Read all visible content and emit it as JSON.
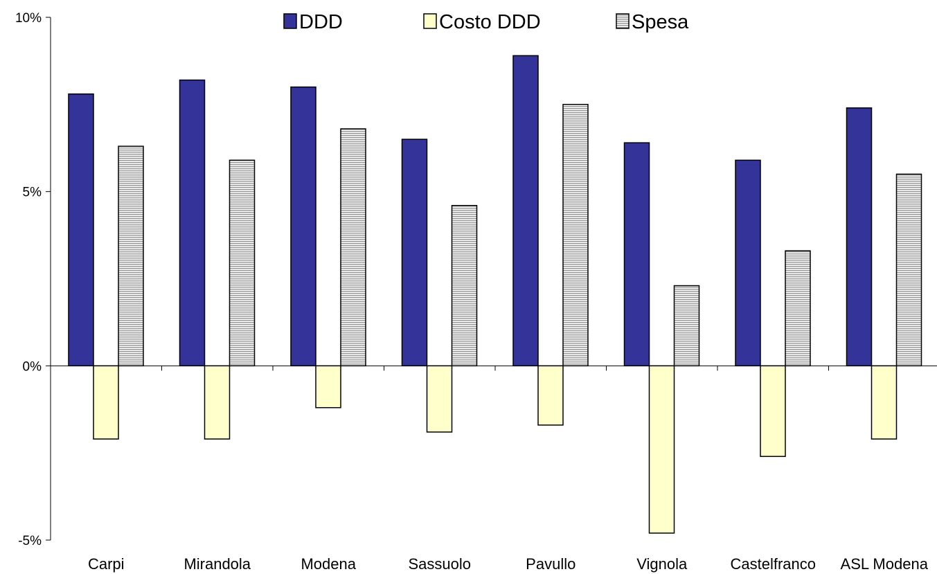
{
  "chart_data": {
    "type": "bar",
    "title": "",
    "xlabel": "",
    "ylabel": "",
    "categories": [
      "Carpi",
      "Mirandola",
      "Modena",
      "Sassuolo",
      "Pavullo",
      "Vignola",
      "Castelfranco",
      "ASL Modena"
    ],
    "series": [
      {
        "name": "DDD",
        "color": "#333399",
        "pattern": "solid",
        "values": [
          7.8,
          8.2,
          8.0,
          6.5,
          8.9,
          6.4,
          5.9,
          7.4
        ]
      },
      {
        "name": "Costo DDD",
        "color": "#FFFFCC",
        "pattern": "solid",
        "values": [
          -2.1,
          -2.1,
          -1.2,
          -1.9,
          -1.7,
          -4.8,
          -2.6,
          -2.1
        ]
      },
      {
        "name": "Spesa",
        "color": "#DDDDDD",
        "pattern": "horizontal-lines",
        "values": [
          6.3,
          5.9,
          6.8,
          4.6,
          7.5,
          2.3,
          3.3,
          5.5
        ]
      }
    ],
    "ylim": [
      -5,
      10
    ],
    "yticks": [
      -5,
      0,
      5,
      10
    ],
    "ytick_labels": [
      "-5%",
      "0%",
      "5%",
      "10%"
    ],
    "grid": false,
    "legend_position": "top-center"
  }
}
